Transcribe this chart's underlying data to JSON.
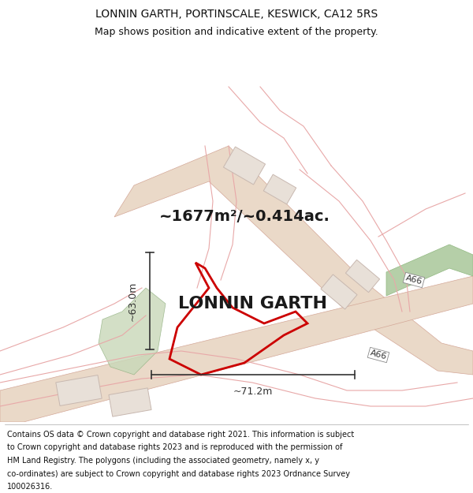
{
  "title_line1": "LONNIN GARTH, PORTINSCALE, KESWICK, CA12 5RS",
  "title_line2": "Map shows position and indicative extent of the property.",
  "area_text": "~1677m²/~0.414ac.",
  "property_label": "LONNIN GARTH",
  "dim_vertical": "~63.0m",
  "dim_horizontal": "~71.2m",
  "road_label": "A66",
  "footer_lines": [
    "Contains OS data © Crown copyright and database right 2021. This information is subject",
    "to Crown copyright and database rights 2023 and is reproduced with the permission of",
    "HM Land Registry. The polygons (including the associated geometry, namely x, y",
    "co-ordinates) are subject to Crown copyright and database rights 2023 Ordnance Survey",
    "100026316."
  ],
  "bg_color": "#ffffff",
  "map_bg": "#f8f5f2",
  "road_fill": "#ead9c8",
  "road_edge": "#d4a898",
  "green1_fill": "#c8d8b8",
  "green2_fill": "#b5cfa8",
  "prop_edge": "#cc0000",
  "dim_color": "#333333",
  "pink_line": "#e8a8a8",
  "bldg_fill": "#e8e0d8",
  "bldg_edge": "#c8b8b0",
  "title_color": "#111111",
  "footer_color": "#111111",
  "title_fs": 10,
  "subtitle_fs": 9,
  "area_fs": 14,
  "label_fs": 16,
  "dim_fs": 9,
  "footer_fs": 7
}
